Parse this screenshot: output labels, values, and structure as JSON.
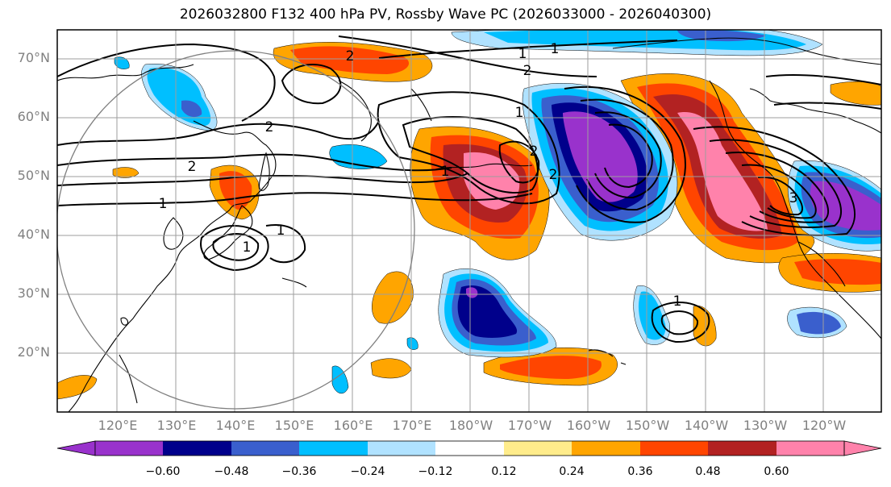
{
  "title": "2026032800 F132 400 hPa PV, Rossby Wave PC (2026033000 - 2026040300)",
  "lat_labels": [
    "70°N",
    "60°N",
    "50°N",
    "40°N",
    "30°N",
    "20°N"
  ],
  "lon_labels": [
    "120°E",
    "130°E",
    "140°E",
    "150°E",
    "160°E",
    "170°E",
    "180°W",
    "170°W",
    "160°W",
    "150°W",
    "140°W",
    "130°W",
    "120°W"
  ],
  "colorbar": {
    "tick_labels": [
      "−0.60",
      "−0.48",
      "−0.36",
      "−0.24",
      "−0.12",
      "0.12",
      "0.24",
      "0.36",
      "0.48",
      "0.60"
    ],
    "colors": [
      "#9932cc",
      "#00008b",
      "#3a5fcd",
      "#00bfff",
      "#b0e2ff",
      "#ffffff",
      "#ffec8b",
      "#ffa500",
      "#ff4500",
      "#b22222",
      "#ff82ab"
    ]
  },
  "contour_labels": [
    "1",
    "2",
    "1",
    "2",
    "1",
    "1",
    "2",
    "2",
    "1",
    "2",
    "2",
    "1",
    "3",
    "1",
    "1"
  ]
}
